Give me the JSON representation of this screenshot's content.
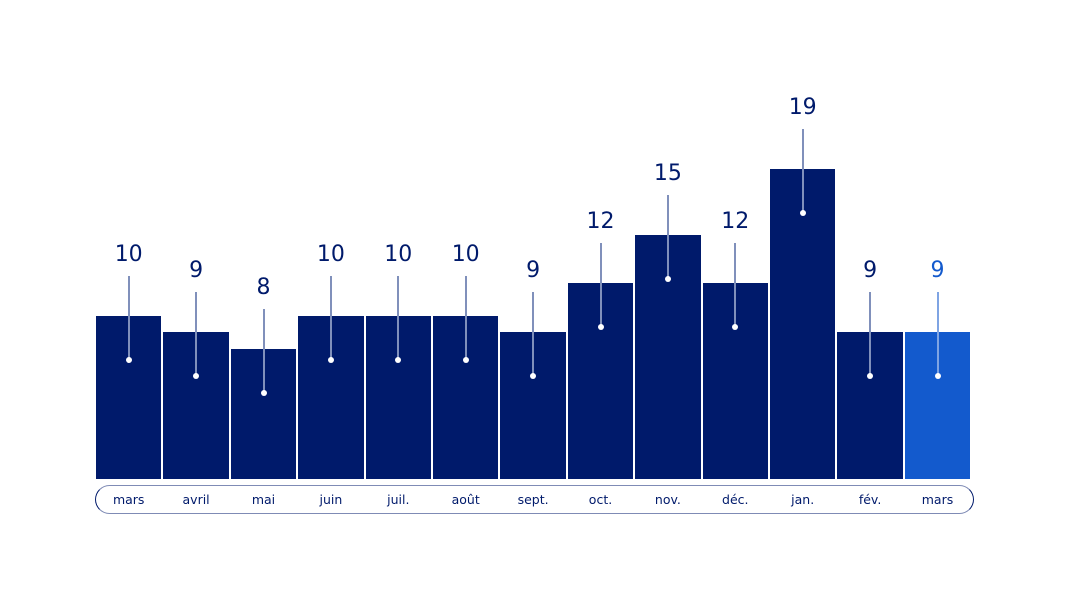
{
  "chart_data": {
    "type": "bar",
    "title": "",
    "xlabel": "",
    "ylabel": "",
    "categories": [
      "mars",
      "avril",
      "mai",
      "juin",
      "juil.",
      "août",
      "sept.",
      "oct.",
      "nov.",
      "déc.",
      "jan.",
      "fév.",
      "mars"
    ],
    "values": [
      10,
      9,
      8,
      10,
      10,
      10,
      9,
      12,
      15,
      12,
      19,
      9,
      9
    ],
    "value_labels": [
      "10",
      "9",
      "8",
      "10",
      "10",
      "10",
      "9",
      "12",
      "15",
      "12",
      "19",
      "9",
      "9"
    ],
    "highlighted_index": 12,
    "ylim": [
      0,
      20
    ],
    "grid": false,
    "legend": null,
    "colors": {
      "bar": "#001a6b",
      "highlight_bar": "#135acd",
      "label_text": "#001a6b",
      "highlight_label_text": "#135acd",
      "stem": "#8090bb",
      "axis_pill_border": "#7f8bb5"
    }
  }
}
